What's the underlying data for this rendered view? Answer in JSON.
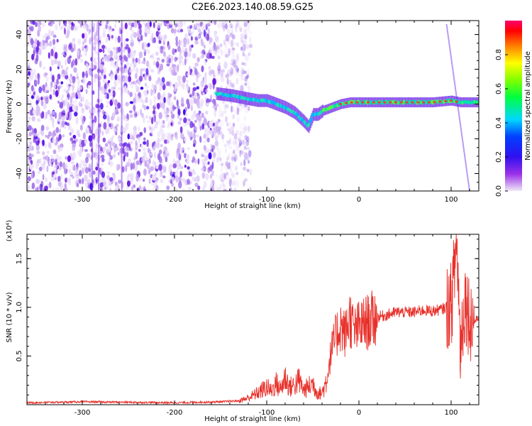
{
  "title": "C2E6.2023.140.08.59.G25",
  "colors": {
    "snr_line": "#e8302a",
    "spectrogram_noise": "#6a10e0",
    "spectrogram_signal": "#00c8a0",
    "colorbar_stops": [
      "#e8e0f0",
      "#8a00e0",
      "#0000ff",
      "#00c0ff",
      "#00ff60",
      "#b0ff00",
      "#ffff00",
      "#ff8000",
      "#ff0000",
      "#ff00a0"
    ]
  },
  "chart_data": [
    {
      "type": "heatmap",
      "xlabel": "Height of straight line (km)",
      "ylabel": "Frequency (Hz)",
      "xlim": [
        -360,
        130
      ],
      "ylim": [
        -50,
        48
      ],
      "x_ticks": [
        -300,
        -200,
        -100,
        0,
        100
      ],
      "x_tick_labels": [
        "-300",
        "-200",
        "-100",
        "0",
        "100"
      ],
      "y_ticks": [
        -40,
        -20,
        0,
        20,
        40
      ],
      "y_tick_labels": [
        "-40",
        "-20",
        "0",
        "20",
        "40"
      ],
      "colorbar": {
        "label": "Normalized spectral amplitude",
        "range": [
          0,
          1
        ],
        "ticks": [
          0,
          0.2,
          0.4,
          0.6,
          0.8
        ],
        "tick_labels": [
          "0.0",
          "0.2",
          "0.4",
          "0.6",
          "0.8"
        ]
      },
      "signal_track": {
        "x": [
          -155,
          -140,
          -130,
          -120,
          -110,
          -100,
          -90,
          -80,
          -70,
          -60,
          -55,
          -50,
          -45,
          -40,
          -30,
          -20,
          -10,
          0,
          20,
          40,
          60,
          80,
          100,
          110,
          130
        ],
        "y": [
          6,
          5,
          4,
          3,
          2,
          2,
          0,
          -2,
          -5,
          -10,
          -13,
          -6,
          -6,
          -4,
          -2,
          0,
          1,
          1,
          1,
          1,
          1,
          1,
          2,
          1,
          1
        ]
      },
      "noise_region_x": [
        -360,
        -125
      ],
      "grid": false
    },
    {
      "type": "line",
      "xlabel": "Height of straight line (km)",
      "ylabel": "SNR (10 * v/v)",
      "y_multiplier_label": "(x10⁴)",
      "xlim": [
        -360,
        130
      ],
      "ylim": [
        0,
        1.75
      ],
      "x_ticks": [
        -300,
        -200,
        -100,
        0,
        100
      ],
      "x_tick_labels": [
        "-300",
        "-200",
        "-100",
        "0",
        "100"
      ],
      "y_ticks": [
        0.5,
        1.0,
        1.5
      ],
      "y_tick_labels": [
        "0.5",
        "1.0",
        "1.5"
      ],
      "grid": false,
      "series": [
        {
          "x": [
            -360,
            -300,
            -200,
            -150,
            -130,
            -120,
            -110,
            -100,
            -95,
            -90,
            -85,
            -80,
            -75,
            -70,
            -65,
            -60,
            -55,
            -50,
            -45,
            -40,
            -35,
            -30,
            -25,
            -20,
            -15,
            -10,
            -5,
            0,
            10,
            20,
            30,
            40,
            50,
            60,
            70,
            80,
            90,
            95,
            100,
            103,
            106,
            110,
            115,
            120,
            125,
            130
          ],
          "y": [
            0.02,
            0.03,
            0.02,
            0.03,
            0.04,
            0.07,
            0.12,
            0.18,
            0.14,
            0.22,
            0.16,
            0.28,
            0.18,
            0.2,
            0.25,
            0.15,
            0.18,
            0.22,
            0.12,
            0.12,
            0.25,
            0.55,
            0.7,
            0.82,
            0.72,
            0.9,
            0.75,
            0.8,
            0.85,
            0.9,
            0.92,
            0.95,
            0.95,
            0.95,
            0.97,
            0.96,
            0.98,
            1.0,
            1.02,
            1.3,
            1.74,
            0.6,
            1.1,
            0.9,
            0.85,
            0.9
          ]
        }
      ]
    }
  ]
}
